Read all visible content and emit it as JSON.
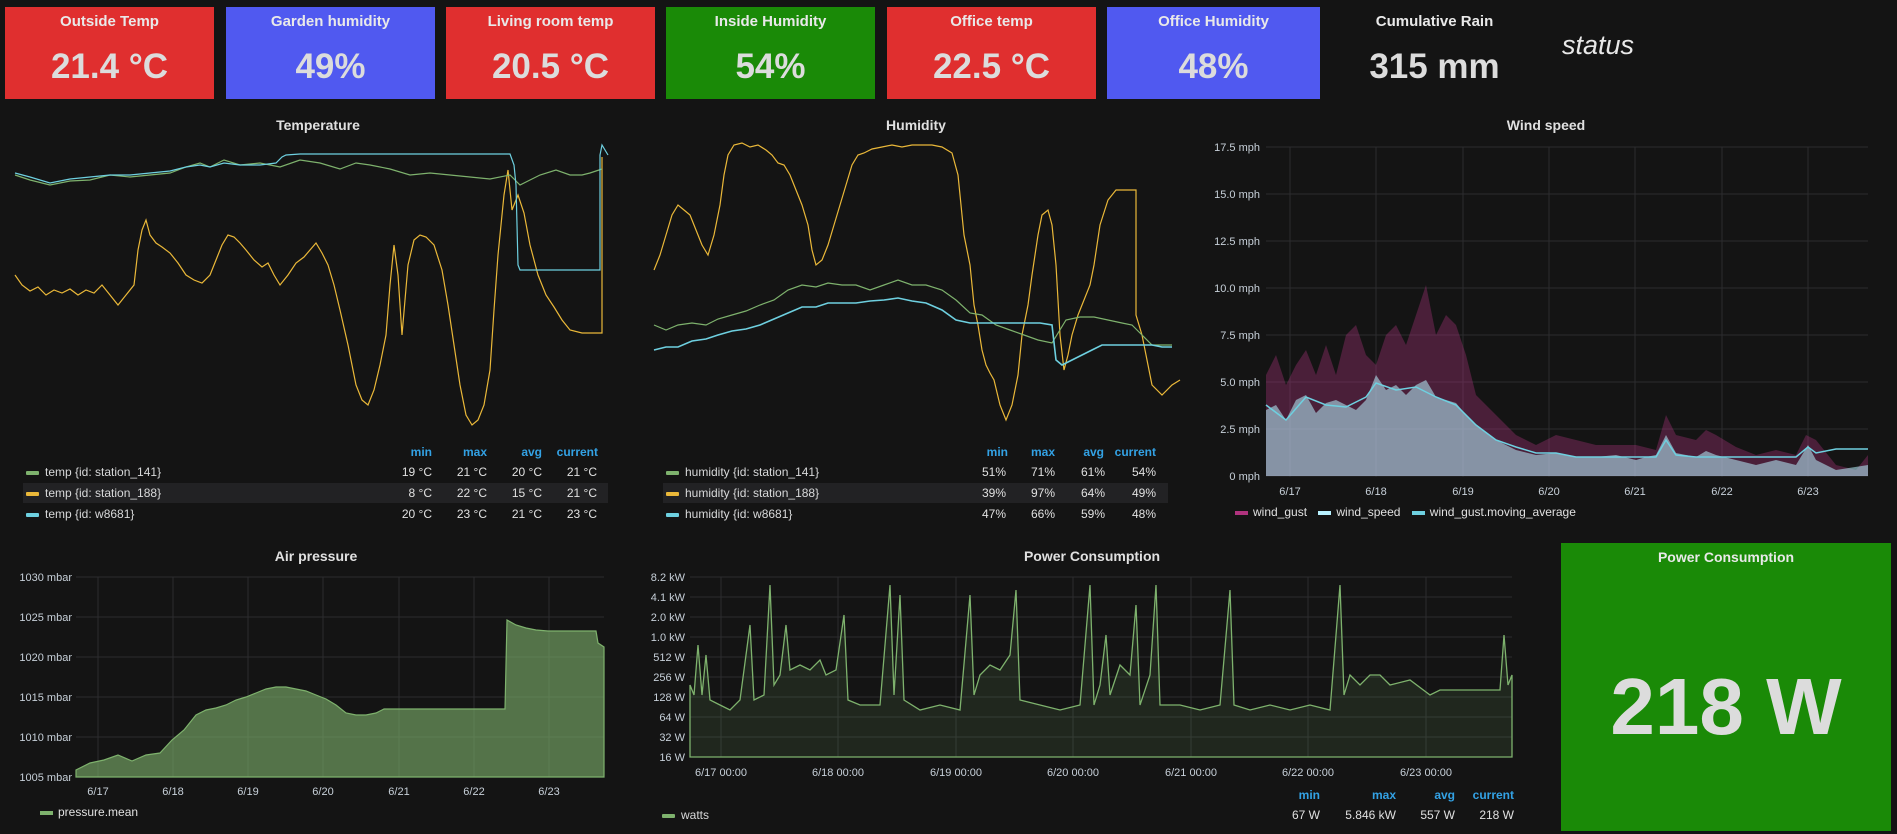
{
  "stats": [
    {
      "title": "Outside Temp",
      "value": "21.4 °C",
      "color": "#e02f2f"
    },
    {
      "title": "Garden humidity",
      "value": "49%",
      "color": "#5059f0"
    },
    {
      "title": "Living room temp",
      "value": "20.5 °C",
      "color": "#e02f2f"
    },
    {
      "title": "Inside Humidity",
      "value": "54%",
      "color": "#1a8a07"
    },
    {
      "title": "Office temp",
      "value": "22.5 °C",
      "color": "#e02f2f"
    },
    {
      "title": "Office Humidity",
      "value": "48%",
      "color": "#5059f0"
    }
  ],
  "rain": {
    "title": "Cumulative Rain",
    "value": "315 mm"
  },
  "status_label": "status",
  "temperature": {
    "title": "Temperature",
    "headers": {
      "min": "min",
      "max": "max",
      "avg": "avg",
      "current": "current"
    },
    "series": [
      {
        "name": "temp {id: station_141}",
        "color": "#7eb26d",
        "min": "19 °C",
        "max": "21 °C",
        "avg": "20 °C",
        "current": "21 °C"
      },
      {
        "name": "temp {id: station_188}",
        "color": "#eab839",
        "min": "8 °C",
        "max": "22 °C",
        "avg": "15 °C",
        "current": "21 °C"
      },
      {
        "name": "temp {id: w8681}",
        "color": "#6ed0e0",
        "min": "20 °C",
        "max": "23 °C",
        "avg": "21 °C",
        "current": "23 °C"
      }
    ]
  },
  "humidity": {
    "title": "Humidity",
    "headers": {
      "min": "min",
      "max": "max",
      "avg": "avg",
      "current": "current"
    },
    "series": [
      {
        "name": "humidity {id: station_141}",
        "color": "#7eb26d",
        "min": "51%",
        "max": "71%",
        "avg": "61%",
        "current": "54%"
      },
      {
        "name": "humidity {id: station_188}",
        "color": "#eab839",
        "min": "39%",
        "max": "97%",
        "avg": "64%",
        "current": "49%"
      },
      {
        "name": "humidity {id: w8681}",
        "color": "#6ed0e0",
        "min": "47%",
        "max": "66%",
        "avg": "59%",
        "current": "48%"
      }
    ]
  },
  "wind": {
    "title": "Wind speed",
    "y_ticks": [
      "17.5 mph",
      "15.0 mph",
      "12.5 mph",
      "10.0 mph",
      "7.5 mph",
      "5.0 mph",
      "2.5 mph",
      "0 mph"
    ],
    "x_ticks": [
      "6/17",
      "6/18",
      "6/19",
      "6/20",
      "6/21",
      "6/22",
      "6/23"
    ],
    "legend": [
      {
        "name": "wind_gust",
        "color": "#b0337e"
      },
      {
        "name": "wind_speed",
        "color": "#b8f2ff"
      },
      {
        "name": "wind_gust.moving_average",
        "color": "#6ed0e0"
      }
    ]
  },
  "pressure": {
    "title": "Air pressure",
    "y_ticks": [
      "1030 mbar",
      "1025 mbar",
      "1020 mbar",
      "1015 mbar",
      "1010 mbar",
      "1005 mbar"
    ],
    "x_ticks": [
      "6/17",
      "6/18",
      "6/19",
      "6/20",
      "6/21",
      "6/22",
      "6/23"
    ],
    "legend": [
      {
        "name": "pressure.mean",
        "color": "#7eb26d"
      }
    ]
  },
  "power": {
    "title": "Power Consumption",
    "y_ticks": [
      "8.2 kW",
      "4.1 kW",
      "2.0 kW",
      "1.0 kW",
      "512 W",
      "256 W",
      "128 W",
      "64 W",
      "32 W",
      "16 W"
    ],
    "x_ticks": [
      "6/17 00:00",
      "6/18 00:00",
      "6/19 00:00",
      "6/20 00:00",
      "6/21 00:00",
      "6/22 00:00",
      "6/23 00:00"
    ],
    "headers": {
      "min": "min",
      "max": "max",
      "avg": "avg",
      "current": "current"
    },
    "series": [
      {
        "name": "watts",
        "color": "#7eb26d",
        "min": "67 W",
        "max": "5.846 kW",
        "avg": "557 W",
        "current": "218 W"
      }
    ]
  },
  "power_stat": {
    "title": "Power Consumption",
    "value": "218 W",
    "color": "#1a8a07"
  }
}
